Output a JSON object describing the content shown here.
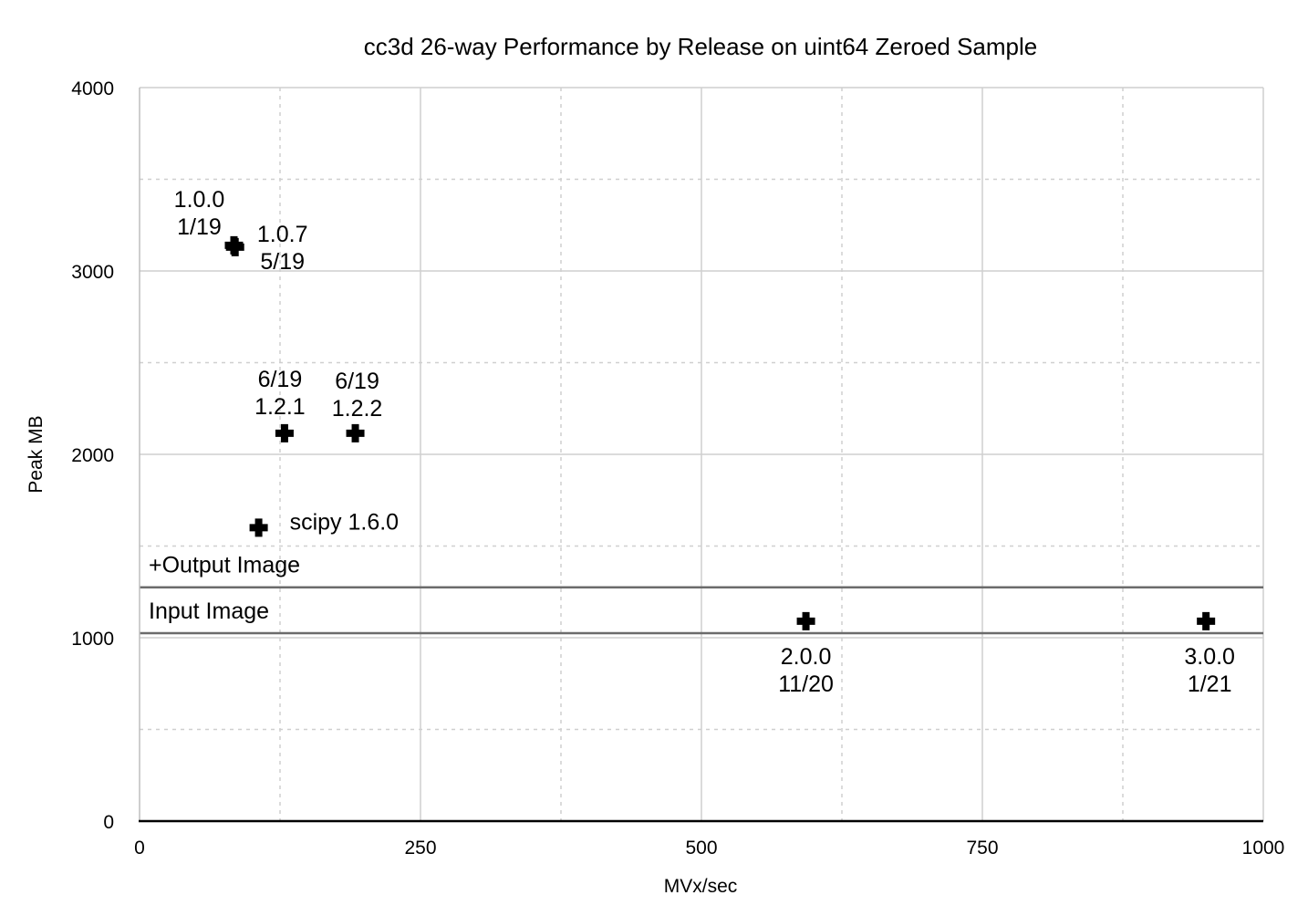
{
  "chart_data": {
    "type": "scatter",
    "title": "cc3d 26-way Performance by Release on uint64 Zeroed Sample",
    "xlabel": "MVx/sec",
    "ylabel": "Peak MB",
    "xlim": [
      0,
      1000
    ],
    "ylim": [
      0,
      4000
    ],
    "x_ticks": [
      0,
      250,
      500,
      750,
      1000
    ],
    "y_ticks": [
      0,
      1000,
      2000,
      3000,
      4000
    ],
    "grid": true,
    "legend": "none",
    "marker": "plus",
    "points": [
      {
        "x": 84,
        "y": 3140,
        "label": [
          "1.0.0",
          "1/19"
        ]
      },
      {
        "x": 85,
        "y": 3130,
        "label": [
          "1.0.7",
          "5/19"
        ]
      },
      {
        "x": 129,
        "y": 2115,
        "label": [
          "6/19",
          "1.2.1"
        ]
      },
      {
        "x": 192,
        "y": 2115,
        "label": [
          "6/19",
          "1.2.2"
        ]
      },
      {
        "x": 106,
        "y": 1600,
        "label": [
          "scipy 1.6.0"
        ]
      },
      {
        "x": 593,
        "y": 1090,
        "label": [
          "2.0.0",
          "11/20"
        ]
      },
      {
        "x": 949,
        "y": 1090,
        "label": [
          "3.0.0",
          "1/21"
        ]
      }
    ],
    "reference_lines": [
      {
        "y": 1025,
        "label": "Input Image"
      },
      {
        "y": 1275,
        "label": "+Output Image"
      }
    ]
  }
}
